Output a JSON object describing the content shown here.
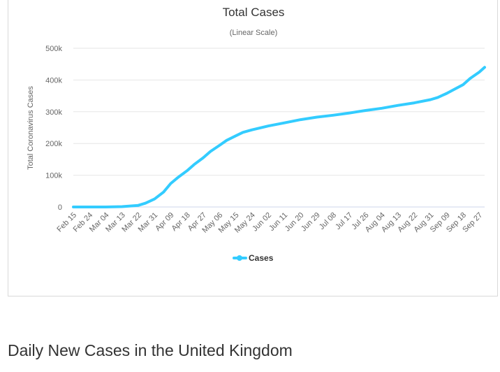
{
  "chart_data": {
    "type": "line",
    "title": "Total Cases",
    "subtitle": "(Linear Scale)",
    "ylabel": "Total Coronavirus Cases",
    "xlabel": "",
    "ylim": [
      0,
      500000
    ],
    "y_ticks": [
      0,
      100000,
      200000,
      300000,
      400000,
      500000
    ],
    "y_tick_labels": [
      "0",
      "100k",
      "200k",
      "300k",
      "400k",
      "500k"
    ],
    "x_tick_labels": [
      "Feb 15",
      "Feb 24",
      "Mar 04",
      "Mar 13",
      "Mar 22",
      "Mar 31",
      "Apr 09",
      "Apr 18",
      "Apr 27",
      "May 06",
      "May 15",
      "May 24",
      "Jun 02",
      "Jun 11",
      "Jun 20",
      "Jun 29",
      "Jul 08",
      "Jul 17",
      "Jul 26",
      "Aug 04",
      "Aug 13",
      "Aug 22",
      "Aug 31",
      "Sep 09",
      "Sep 18",
      "Sep 27"
    ],
    "grid": true,
    "legend_position": "bottom-center",
    "series": [
      {
        "name": "Cases",
        "color": "#33ccff",
        "x": [
          "Feb 15",
          "Feb 24",
          "Mar 04",
          "Mar 13",
          "Mar 22",
          "Mar 26",
          "Mar 31",
          "Apr 05",
          "Apr 09",
          "Apr 13",
          "Apr 18",
          "Apr 22",
          "Apr 27",
          "May 01",
          "May 06",
          "May 10",
          "May 15",
          "May 19",
          "May 24",
          "Jun 02",
          "Jun 11",
          "Jun 20",
          "Jun 29",
          "Jul 08",
          "Jul 17",
          "Jul 26",
          "Aug 04",
          "Aug 13",
          "Aug 22",
          "Aug 31",
          "Sep 04",
          "Sep 09",
          "Sep 13",
          "Sep 18",
          "Sep 22",
          "Sep 27",
          "Sep 30"
        ],
        "values": [
          0,
          0,
          100,
          1000,
          5000,
          12000,
          25000,
          47000,
          74000,
          93000,
          114000,
          134000,
          155000,
          175000,
          194000,
          210000,
          224000,
          235000,
          243000,
          255000,
          265000,
          275000,
          283000,
          289000,
          296000,
          304000,
          311000,
          320000,
          328000,
          338000,
          345000,
          358000,
          370000,
          385000,
          405000,
          425000,
          440000
        ]
      }
    ]
  }
}
